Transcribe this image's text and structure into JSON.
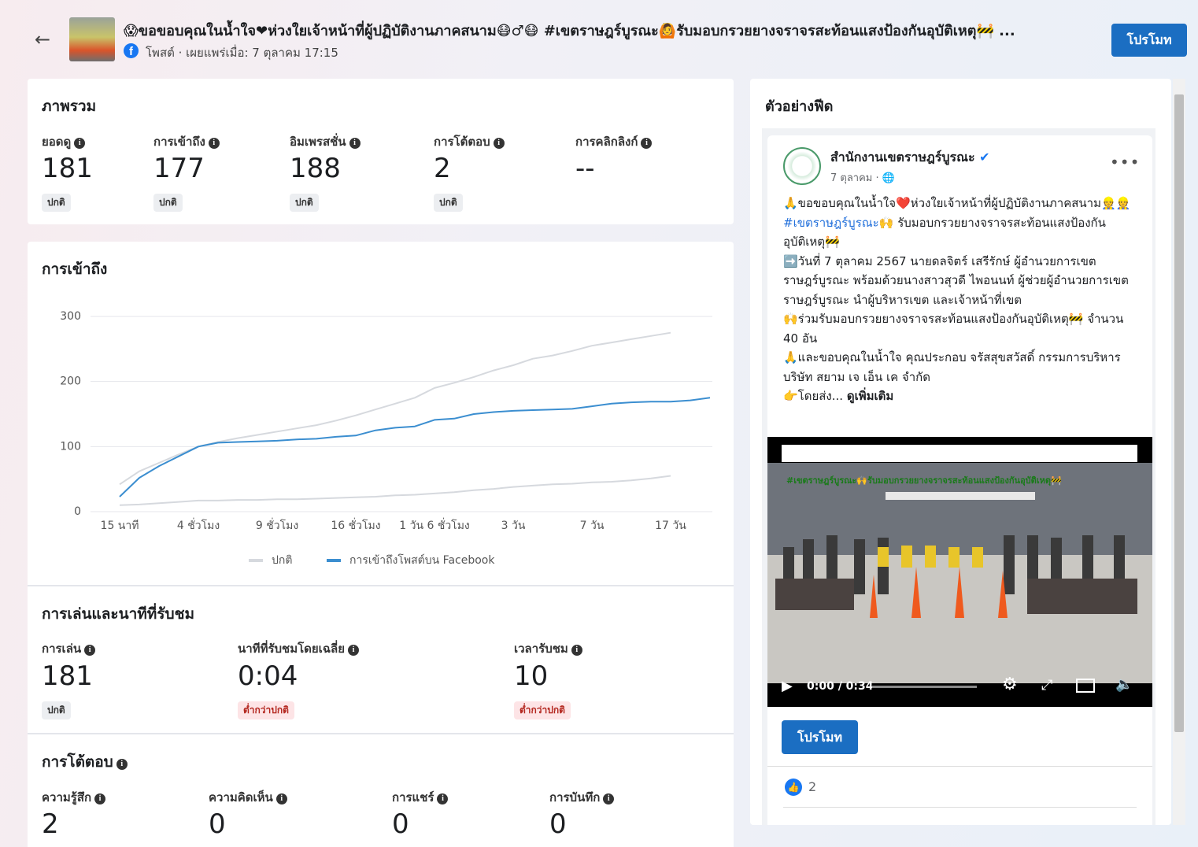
{
  "header": {
    "title": "😱ขอขอบคุณในน้ำใจ❤ห่วงใยเจ้าหน้าที่ผู้ปฏิบัติงานภาคสนาม😷♂😷 #เขตราษฎร์บูรณะ🙆รับมอบกรวยยางจราจรสะท้อนแสงป้องกันอุบัติเหตุ🚧 ...",
    "subtitle": "โพสต์ · เผยแพร่เมื่อ: 7 ตุลาคม 17:15",
    "promote_button": "โปรโมท"
  },
  "overview": {
    "title": "ภาพรวม",
    "metrics": [
      {
        "label": "ยอดดู",
        "value": "181",
        "status": "ปกติ"
      },
      {
        "label": "การเข้าถึง",
        "value": "177",
        "status": "ปกติ"
      },
      {
        "label": "อิมเพรสชั่น",
        "value": "188",
        "status": "ปกติ"
      },
      {
        "label": "การโต้ตอบ",
        "value": "2",
        "status": "ปกติ"
      },
      {
        "label": "การคลิกลิงก์",
        "value": "--"
      }
    ]
  },
  "chart_data": {
    "type": "line",
    "title": "การเข้าถึง",
    "x": [
      0,
      0.25,
      0.5,
      0.75,
      1,
      1.25,
      1.5,
      1.75,
      2,
      2.25,
      2.5,
      2.75,
      3,
      3.25,
      3.5,
      3.75,
      4,
      4.25,
      4.5,
      4.75,
      5,
      5.25,
      5.5,
      5.75,
      6,
      6.25,
      6.5,
      6.75,
      7,
      7.25,
      7.5
    ],
    "series": [
      {
        "name": "ปกติ",
        "color": "#d6d9de",
        "values": [
          42,
          62,
          75,
          88,
          100,
          107,
          113,
          118,
          123,
          128,
          133,
          140,
          148,
          157,
          166,
          175,
          190,
          198,
          207,
          217,
          225,
          235,
          240,
          247,
          255,
          260,
          265,
          270,
          275,
          null,
          null
        ],
        "lower": [
          10,
          11,
          13,
          15,
          17,
          17,
          18,
          18,
          19,
          19,
          20,
          21,
          22,
          23,
          25,
          26,
          28,
          30,
          33,
          35,
          38,
          40,
          42,
          43,
          45,
          46,
          48,
          51,
          55,
          null,
          null
        ]
      },
      {
        "name": "การเข้าถึงโพสต์บน Facebook",
        "color": "#3b8ed0",
        "values": [
          23,
          52,
          70,
          85,
          100,
          106,
          107,
          108,
          109,
          111,
          112,
          115,
          117,
          125,
          129,
          131,
          141,
          143,
          150,
          153,
          155,
          156,
          157,
          158,
          162,
          166,
          168,
          169,
          169,
          171,
          175
        ]
      }
    ],
    "xlim": [
      -0.37,
      7.53
    ],
    "xticks": [
      {
        "value": 0,
        "label": "15 นาที"
      },
      {
        "value": 1,
        "label": "4 ชั่วโมง"
      },
      {
        "value": 2,
        "label": "9 ชั่วโมง"
      },
      {
        "value": 3,
        "label": "16 ชั่วโมง"
      },
      {
        "value": 4,
        "label": "1 วัน 6 ชั่วโมง"
      },
      {
        "value": 5,
        "label": "3 วัน"
      },
      {
        "value": 6,
        "label": "7 วัน"
      },
      {
        "value": 7,
        "label": "17 วัน"
      }
    ],
    "ylim": [
      0,
      300
    ],
    "yticks": [
      0,
      100,
      200,
      300
    ],
    "grid": true,
    "legend": "bottom"
  },
  "plays": {
    "title": "การเล่นและนาทีที่รับชม",
    "metrics": [
      {
        "label": "การเล่น",
        "value": "181",
        "status": "ปกติ"
      },
      {
        "label": "นาทีที่รับชมโดยเฉลี่ย",
        "value": "0:04",
        "status": "ต่ำกว่าปกติ"
      },
      {
        "label": "เวลารับชม",
        "value": "10",
        "status": "ต่ำกว่าปกติ"
      }
    ]
  },
  "engagement": {
    "title": "การโต้ตอบ",
    "metrics": [
      {
        "label": "ความรู้สึก",
        "value": "2"
      },
      {
        "label": "ความคิดเห็น",
        "value": "0"
      },
      {
        "label": "การแชร์",
        "value": "0"
      },
      {
        "label": "การบันทึก",
        "value": "0"
      }
    ]
  },
  "feed_preview": {
    "title": "ตัวอย่างฟีด",
    "page_name": "สำนักงานเขตราษฎร์บูรณะ",
    "date": "7 ตุลาคม · 🌐",
    "body": [
      "🙏ขอขอบคุณในน้ำใจ❤️ห่วงใยเจ้าหน้าที่ผู้ปฏิบัติงานภาคสนาม👷👷",
      "#เขตราษฎร์บูรณะ🙌",
      " รับมอบกรวยยางจราจรสะท้อนแสงป้องกันอุบัติเหตุ🚧",
      "➡️วันที่ 7 ตุลาคม 2567  นายดลจิตร์ เสรีรักษ์ ผู้อำนวยการเขตราษฎร์บูรณะ พร้อมด้วยนางสาวสุวดี ไพอนนท์ ผู้ช่วยผู้อำนวยการเขตราษฎร์บูรณะ นำผู้บริหารเขต และเจ้าหน้าที่เขต",
      "🙌ร่วมรับมอบกรวยยางจราจรสะท้อนแสงป้องกันอุบัติเหตุ🚧 จำนวน 40 อัน",
      "🙏และขอบคุณในน้ำใจ คุณประกอบ จรัสสุขสวัสดิ์ กรรมการบริหาร บริษัท สยาม เจ เอ็น เค จำกัด",
      "👉โดยส่ง... "
    ],
    "see_more": "ดูเพิ่มเติม",
    "video_caption": "#เขตราษฎร์บูรณะ🙌รับมอบกรวยยางจราจรสะท้อนแสงป้องกันอุบัติเหตุ🚧",
    "video_time": "0:00 / 0:34",
    "promote_button": "โปรโมท",
    "likes": "2"
  }
}
